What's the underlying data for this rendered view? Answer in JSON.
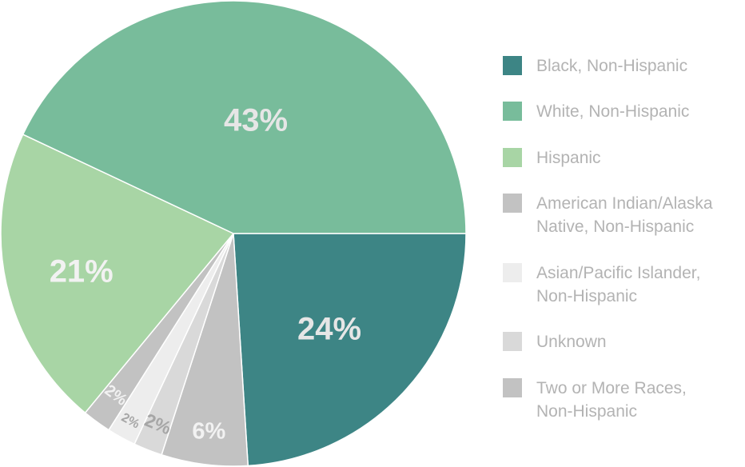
{
  "chart_data": {
    "type": "pie",
    "slices": [
      {
        "name": "Black, Non-Hispanic",
        "value": 24,
        "label": "24%",
        "color": "#3d8585",
        "label_color": "#e6e6e6"
      },
      {
        "name": "American Indian/Alaska Native, Non-Hispanic",
        "value": 6,
        "label": "6%",
        "color": "#c2c2c2",
        "label_color": "#f2f2f2"
      },
      {
        "name": "Unknown",
        "value": 2,
        "label": "2%",
        "color": "#d9d9d9",
        "label_color": "#a6a6a6"
      },
      {
        "name": "Asian/Pacific Islander, Non-Hispanic",
        "value": 2,
        "label": "2%",
        "color": "#ededed",
        "label_color": "#a6a6a6"
      },
      {
        "name": "Two or More Races, Non-Hispanic",
        "value": 2,
        "label": "2%",
        "color": "#c2c2c2",
        "label_color": "#f2f2f2"
      },
      {
        "name": "Hispanic",
        "value": 21,
        "label": "21%",
        "color": "#a8d5a5",
        "label_color": "#f2f2f2"
      },
      {
        "name": "White, Non-Hispanic",
        "value": 43,
        "label": "43%",
        "color": "#78bc9b",
        "label_color": "#e6e6e6"
      }
    ],
    "legend": {
      "placement": "right",
      "entries": [
        {
          "lines": [
            "Black, Non-Hispanic"
          ],
          "color": "#3d8585"
        },
        {
          "lines": [
            "White, Non-Hispanic"
          ],
          "color": "#78bc9b"
        },
        {
          "lines": [
            "Hispanic"
          ],
          "color": "#a8d5a5"
        },
        {
          "lines": [
            "American Indian/Alaska",
            "Native, Non-Hispanic"
          ],
          "color": "#c2c2c2"
        },
        {
          "lines": [
            "Asian/Pacific Islander,",
            "Non-Hispanic"
          ],
          "color": "#ededed"
        },
        {
          "lines": [
            "Unknown"
          ],
          "color": "#d9d9d9"
        },
        {
          "lines": [
            "Two or More Races,",
            "Non-Hispanic"
          ],
          "color": "#c2c2c2"
        }
      ]
    }
  }
}
